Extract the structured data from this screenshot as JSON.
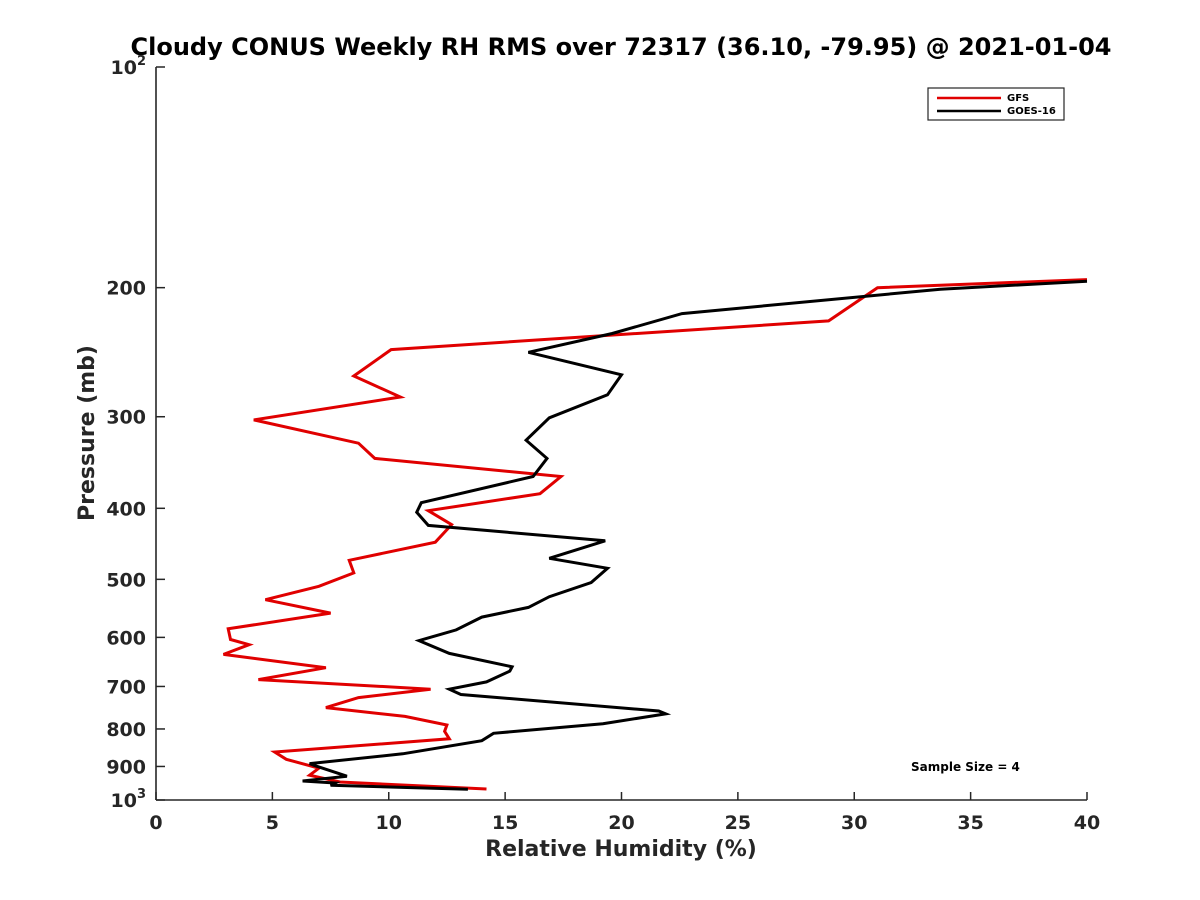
{
  "chart_data": {
    "type": "line",
    "title": "Cloudy CONUS Weekly RH RMS over 72317 (36.10, -79.95) @ 2021-01-04",
    "xlabel": "Relative Humidity (%)",
    "ylabel": "Pressure (mb)",
    "xlim": [
      0,
      40
    ],
    "ylim": [
      100,
      1000
    ],
    "y_scale": "log",
    "y_reversed": true,
    "grid": false,
    "legend_position": "top-right",
    "x_ticks": [
      "0",
      "5",
      "10",
      "15",
      "20",
      "25",
      "30",
      "35",
      "40"
    ],
    "y_ticks": [
      {
        "value": 100,
        "base": "10",
        "exp": "2"
      },
      {
        "value": 200,
        "label": "200"
      },
      {
        "value": 300,
        "label": "300"
      },
      {
        "value": 400,
        "label": "400"
      },
      {
        "value": 500,
        "label": "500"
      },
      {
        "value": 600,
        "label": "600"
      },
      {
        "value": 700,
        "label": "700"
      },
      {
        "value": 800,
        "label": "800"
      },
      {
        "value": 900,
        "label": "900"
      },
      {
        "value": 1000,
        "base": "10",
        "exp": "3"
      }
    ],
    "annotation": "Sample Size = 4",
    "series": [
      {
        "name": "GFS",
        "color": "#e00000",
        "points": [
          [
            40.0,
            195
          ],
          [
            31.0,
            200
          ],
          [
            28.9,
            222
          ],
          [
            10.1,
            243
          ],
          [
            8.5,
            264
          ],
          [
            10.5,
            282
          ],
          [
            4.2,
            303
          ],
          [
            8.7,
            326
          ],
          [
            9.4,
            342
          ],
          [
            17.4,
            362
          ],
          [
            16.5,
            382
          ],
          [
            11.7,
            403
          ],
          [
            12.7,
            421
          ],
          [
            12.0,
            445
          ],
          [
            8.3,
            471
          ],
          [
            8.5,
            490
          ],
          [
            7.0,
            511
          ],
          [
            4.7,
            533
          ],
          [
            7.5,
            556
          ],
          [
            3.1,
            584
          ],
          [
            3.2,
            604
          ],
          [
            4.0,
            614
          ],
          [
            2.9,
            633
          ],
          [
            7.3,
            660
          ],
          [
            4.4,
            685
          ],
          [
            11.8,
            706
          ],
          [
            8.7,
            725
          ],
          [
            7.3,
            748
          ],
          [
            10.7,
            769
          ],
          [
            12.5,
            790
          ],
          [
            12.4,
            806
          ],
          [
            12.6,
            825
          ],
          [
            5.1,
            860
          ],
          [
            5.6,
            880
          ],
          [
            7.0,
            905
          ],
          [
            6.6,
            925
          ],
          [
            7.9,
            945
          ],
          [
            14.2,
            966
          ]
        ]
      },
      {
        "name": "GOES-16",
        "color": "#000000",
        "points": [
          [
            40.0,
            196
          ],
          [
            33.7,
            201
          ],
          [
            22.6,
            217
          ],
          [
            19.6,
            231
          ],
          [
            16.0,
            245
          ],
          [
            20.0,
            263
          ],
          [
            19.4,
            280
          ],
          [
            16.9,
            301
          ],
          [
            15.9,
            323
          ],
          [
            16.8,
            342
          ],
          [
            16.2,
            362
          ],
          [
            11.4,
            393
          ],
          [
            11.2,
            405
          ],
          [
            11.7,
            422
          ],
          [
            19.3,
            443
          ],
          [
            16.9,
            468
          ],
          [
            19.4,
            483
          ],
          [
            18.7,
            505
          ],
          [
            16.9,
            528
          ],
          [
            16.0,
            546
          ],
          [
            14.0,
            563
          ],
          [
            12.9,
            586
          ],
          [
            11.3,
            606
          ],
          [
            12.6,
            631
          ],
          [
            15.3,
            658
          ],
          [
            15.2,
            667
          ],
          [
            14.2,
            690
          ],
          [
            12.6,
            706
          ],
          [
            13.1,
            718
          ],
          [
            21.6,
            756
          ],
          [
            21.9,
            763
          ],
          [
            19.2,
            787
          ],
          [
            14.5,
            811
          ],
          [
            14.0,
            830
          ],
          [
            10.6,
            865
          ],
          [
            6.6,
            892
          ],
          [
            6.8,
            897
          ],
          [
            8.2,
            928
          ],
          [
            6.3,
            942
          ],
          [
            7.7,
            948
          ],
          [
            7.5,
            955
          ],
          [
            13.4,
            967
          ]
        ]
      }
    ]
  }
}
